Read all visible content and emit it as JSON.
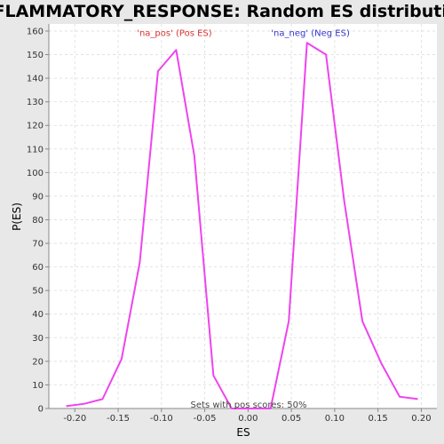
{
  "chart_data": {
    "type": "line",
    "title": "INFLAMMATORY_RESPONSE: Random ES distribution",
    "xlabel": "ES",
    "ylabel": "P(ES)",
    "xlim": [
      -0.23,
      0.218
    ],
    "ylim": [
      0,
      163
    ],
    "x_ticks": [
      -0.2,
      -0.15,
      -0.1,
      -0.05,
      0.0,
      0.05,
      0.1,
      0.15,
      0.2
    ],
    "x_tick_labels": [
      "-0.20",
      "-0.15",
      "-0.10",
      "-0.05",
      "0.00",
      "0.05",
      "0.10",
      "0.15",
      "0.20"
    ],
    "y_ticks": [
      0,
      10,
      20,
      30,
      40,
      50,
      60,
      70,
      80,
      90,
      100,
      110,
      120,
      130,
      140,
      150,
      160
    ],
    "y_tick_labels": [
      "0",
      "10",
      "20",
      "30",
      "40",
      "50",
      "60",
      "70",
      "80",
      "90",
      "100",
      "110",
      "120",
      "130",
      "140",
      "150",
      "160"
    ],
    "grid": true,
    "line_color": "#ee44ee",
    "series": [
      {
        "x": [
          -0.21,
          -0.189,
          -0.168,
          -0.146,
          -0.125,
          -0.104,
          -0.083,
          -0.062,
          -0.04,
          -0.019,
          0.002,
          0.026,
          0.047,
          0.068,
          0.09,
          0.111,
          0.132,
          0.154,
          0.175,
          0.196
        ],
        "y": [
          1,
          2,
          4,
          21,
          62,
          143,
          152,
          107,
          14,
          0,
          0,
          0,
          37,
          155,
          150,
          88,
          37,
          19,
          5,
          4
        ]
      }
    ],
    "annotations": [
      {
        "text": "'na_pos' (Pos ES)",
        "x": -0.085,
        "y": 158,
        "color": "#dd3333"
      },
      {
        "text": "'na_neg' (Neg ES)",
        "x": 0.072,
        "y": 158,
        "color": "#3333cc"
      }
    ],
    "footnote": "Sets with pos scores: 50%"
  }
}
